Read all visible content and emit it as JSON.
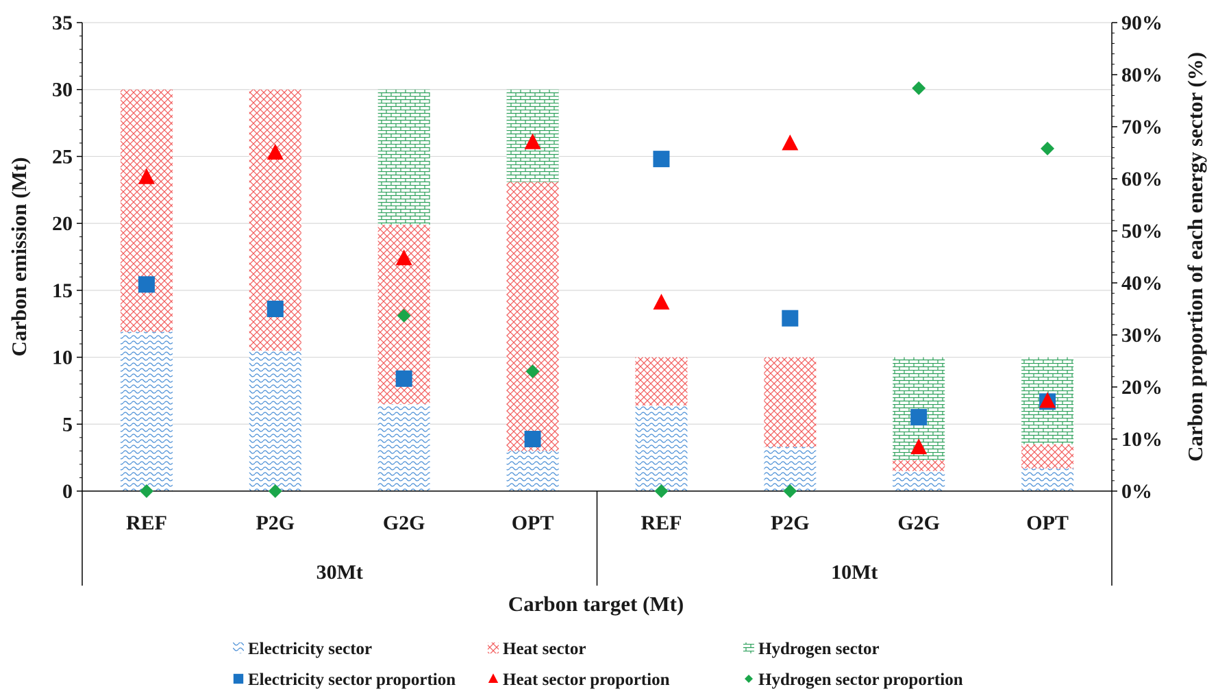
{
  "chart_data": {
    "type": "bar",
    "subtype": "stacked-bar-with-scatter-on-secondary-axis",
    "groups": [
      "30Mt",
      "10Mt"
    ],
    "categories": [
      "REF",
      "P2G",
      "G2G",
      "OPT",
      "REF",
      "P2G",
      "G2G",
      "OPT"
    ],
    "category_group": [
      0,
      0,
      0,
      0,
      1,
      1,
      1,
      1
    ],
    "xlabel": "Carbon target (Mt)",
    "ylabel": "Carbon emission (Mt)",
    "y2label": "Carbon proportion of each energy sector (%)",
    "ylim": [
      0,
      35
    ],
    "y2lim": [
      0,
      90
    ],
    "yticks": [
      "0",
      "5",
      "10",
      "15",
      "20",
      "25",
      "30",
      "35"
    ],
    "y2ticks": [
      "0%",
      "10%",
      "20%",
      "30%",
      "40%",
      "50%",
      "60%",
      "70%",
      "80%",
      "90%"
    ],
    "grid": true,
    "series": [
      {
        "name": "Electricity sector",
        "kind": "bar",
        "axis": "left",
        "color": "#4a8fd6",
        "pattern": "wave",
        "values": [
          11.9,
          10.5,
          6.5,
          3.0,
          6.4,
          3.3,
          1.5,
          1.7
        ]
      },
      {
        "name": "Heat sector",
        "kind": "bar",
        "axis": "left",
        "color": "#f25c5c",
        "pattern": "crosshatch",
        "values": [
          18.1,
          19.5,
          13.4,
          20.1,
          3.6,
          6.7,
          0.8,
          1.8
        ]
      },
      {
        "name": "Hydrogen sector",
        "kind": "bar",
        "axis": "left",
        "color": "#2ca05a",
        "pattern": "brick",
        "values": [
          0,
          0,
          10.1,
          6.9,
          0,
          0,
          7.7,
          6.5
        ]
      },
      {
        "name": "Electricity sector proportion",
        "kind": "scatter",
        "axis": "right",
        "marker": "square",
        "color": "#1b74c4",
        "values": [
          39.7,
          35.0,
          21.6,
          10.0,
          63.8,
          33.2,
          14.2,
          17.2
        ]
      },
      {
        "name": "Heat sector proportion",
        "kind": "scatter",
        "axis": "right",
        "marker": "triangle",
        "color": "#ff0000",
        "values": [
          60.3,
          65.0,
          44.7,
          67.0,
          36.2,
          66.8,
          8.4,
          17.3
        ]
      },
      {
        "name": "Hydrogen sector proportion",
        "kind": "scatter",
        "axis": "right",
        "marker": "diamond",
        "color": "#1aa64a",
        "values": [
          0,
          0,
          33.7,
          23.0,
          0,
          0,
          77.4,
          65.8
        ]
      }
    ]
  }
}
